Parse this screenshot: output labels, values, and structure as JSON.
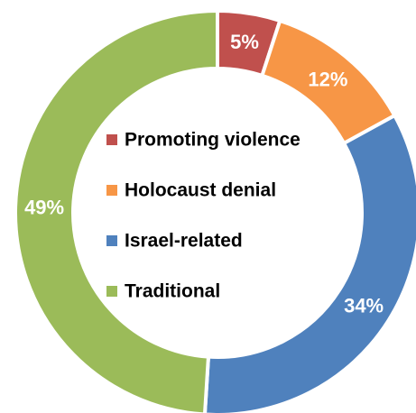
{
  "chart_data": {
    "type": "pie",
    "variant": "donut",
    "categories": [
      "Promoting violence",
      "Holocaust denial",
      "Israel-related",
      "Traditional"
    ],
    "values": [
      5,
      12,
      34,
      49
    ],
    "value_labels": [
      "5%",
      "12%",
      "34%",
      "49%"
    ],
    "colors": [
      "#c0504d",
      "#f79646",
      "#4f81bd",
      "#9bbb59"
    ],
    "legend_position": "center",
    "title": ""
  }
}
